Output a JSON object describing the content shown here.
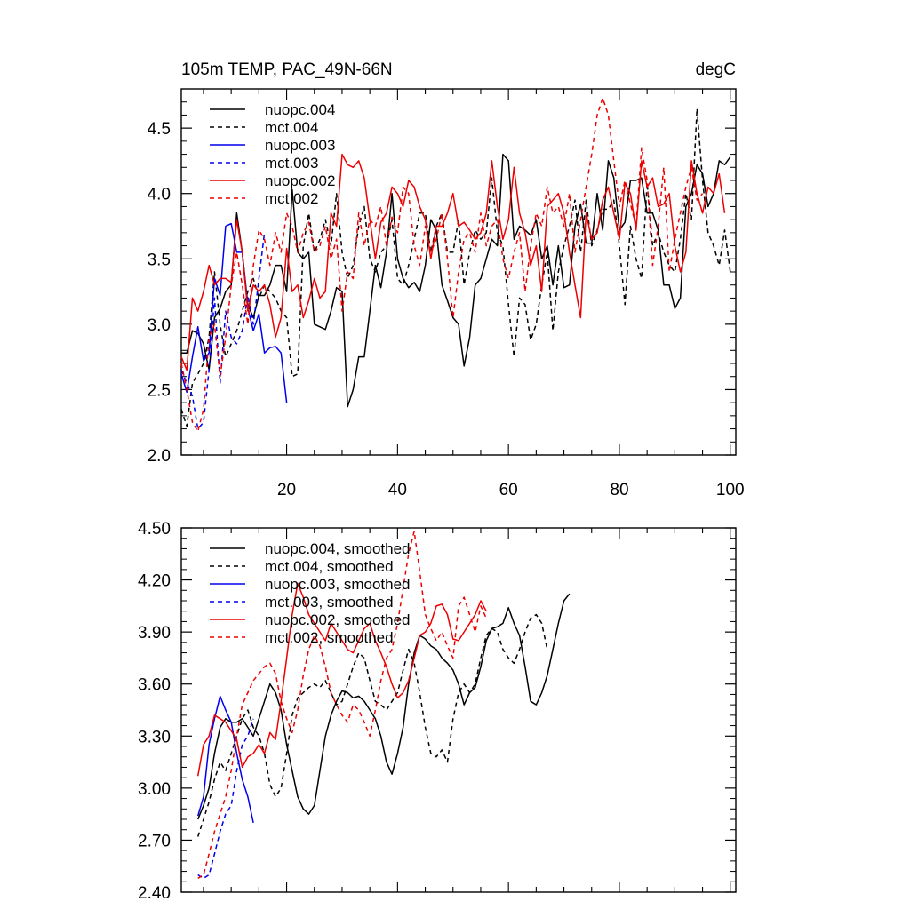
{
  "chart_data": [
    {
      "type": "line",
      "title": "105m TEMP, PAC_49N-66N",
      "units": "degC",
      "xlim": [
        1,
        101
      ],
      "ylim": [
        2.0,
        4.8
      ],
      "yticks": [
        "2.0",
        "2.5",
        "3.0",
        "3.5",
        "4.0",
        "4.5"
      ],
      "xticks": [
        "20",
        "40",
        "60",
        "80",
        "100"
      ],
      "legend_position": "top-left",
      "series": [
        {
          "name": "nuopc.004",
          "color": "#000000",
          "dash": "solid",
          "x_start": 1,
          "values": [
            2.78,
            2.78,
            2.95,
            2.93,
            2.85,
            2.65,
            3.05,
            3.12,
            3.25,
            3.3,
            3.85,
            3.55,
            3.15,
            3.05,
            3.22,
            3.22,
            3.3,
            3.45,
            3.45,
            3.25,
            4.03,
            3.55,
            3.5,
            3.55,
            3.0,
            2.98,
            2.96,
            3.1,
            3.28,
            3.25,
            2.37,
            2.5,
            2.75,
            2.75,
            3.1,
            3.45,
            3.28,
            3.55,
            4.0,
            3.5,
            3.35,
            3.28,
            3.32,
            3.25,
            3.45,
            3.8,
            3.72,
            3.3,
            3.18,
            3.05,
            3.0,
            2.68,
            2.9,
            3.3,
            3.35,
            3.5,
            3.65,
            3.6,
            4.3,
            4.25,
            3.65,
            3.75,
            3.72,
            3.68,
            3.8,
            3.5,
            3.6,
            3.3,
            3.6,
            3.28,
            3.3,
            3.75,
            3.92,
            3.62,
            3.62,
            4.0,
            3.72,
            4.25,
            4.12,
            3.72,
            3.78,
            4.1,
            4.1,
            4.12,
            3.85,
            3.85,
            3.72,
            3.3,
            3.3,
            3.12,
            3.2,
            3.9,
            4.0,
            4.22,
            4.15,
            3.9,
            4.0,
            4.25,
            4.22,
            4.28
          ]
        },
        {
          "name": "mct.004",
          "color": "#000000",
          "dash": "dashed",
          "x_start": 1,
          "values": [
            2.35,
            2.22,
            2.55,
            2.62,
            2.7,
            2.9,
            3.4,
            3.0,
            2.75,
            2.85,
            2.95,
            3.1,
            3.25,
            3.35,
            3.2,
            3.3,
            3.25,
            3.2,
            3.1,
            3.05,
            2.6,
            2.62,
            3.6,
            3.85,
            3.55,
            3.65,
            3.8,
            3.6,
            4.0,
            3.55,
            3.35,
            3.45,
            3.75,
            3.9,
            3.5,
            3.4,
            3.55,
            3.6,
            3.8,
            3.35,
            3.3,
            3.45,
            3.65,
            3.85,
            3.85,
            3.55,
            3.75,
            3.85,
            3.55,
            3.55,
            3.8,
            3.3,
            3.55,
            3.72,
            3.65,
            3.7,
            4.12,
            3.7,
            3.6,
            3.15,
            2.75,
            3.2,
            3.15,
            2.88,
            3.0,
            3.3,
            3.55,
            2.95,
            3.4,
            3.6,
            3.75,
            3.95,
            3.55,
            3.95,
            3.6,
            3.72,
            3.88,
            3.88,
            3.95,
            3.6,
            3.15,
            3.75,
            3.5,
            3.35,
            4.08,
            3.6,
            3.7,
            3.55,
            3.45,
            3.4,
            3.65,
            4.0,
            3.8,
            4.65,
            4.1,
            3.7,
            3.6,
            3.45,
            3.72,
            3.4
          ]
        },
        {
          "name": "nuopc.003",
          "color": "#0000ee",
          "dash": "solid",
          "x_start": 1,
          "values": [
            2.62,
            2.48,
            2.75,
            2.98,
            2.72,
            2.78,
            3.35,
            3.22,
            3.75,
            3.77,
            3.55,
            3.55,
            3.12,
            2.95,
            3.08,
            2.78,
            2.82,
            2.83,
            2.78,
            2.4
          ]
        },
        {
          "name": "mct.003",
          "color": "#0000ee",
          "dash": "dashed",
          "x_start": 1,
          "values": [
            2.65,
            2.55,
            2.45,
            2.2,
            2.25,
            2.65,
            3.2,
            2.55,
            3.1,
            2.9,
            2.85,
            2.95,
            3.22,
            3.0,
            3.35,
            3.7
          ]
        },
        {
          "name": "nuopc.002",
          "color": "#ee0000",
          "dash": "solid",
          "x_start": 1,
          "values": [
            2.75,
            2.65,
            3.2,
            3.1,
            3.25,
            3.45,
            3.3,
            3.35,
            3.35,
            3.32,
            3.8,
            3.55,
            3.1,
            3.3,
            3.25,
            3.3,
            3.15,
            2.9,
            3.05,
            3.58,
            3.25,
            3.3,
            3.05,
            3.18,
            3.35,
            3.2,
            3.25,
            3.85,
            3.75,
            4.3,
            4.22,
            4.2,
            4.25,
            4.12,
            3.8,
            3.5,
            3.78,
            3.85,
            4.05,
            4.0,
            3.9,
            4.1,
            4.05,
            3.9,
            3.8,
            3.5,
            3.75,
            3.75,
            3.85,
            4.0,
            3.75,
            3.78,
            3.72,
            3.65,
            3.7,
            3.85,
            4.25,
            3.9,
            3.65,
            3.8,
            4.2,
            3.85,
            3.7,
            3.45,
            3.6,
            3.25,
            3.9,
            3.95,
            4.0,
            3.85,
            3.55,
            3.3,
            3.05,
            3.85,
            3.65,
            3.7,
            3.95,
            4.05,
            3.85,
            3.65,
            4.08,
            4.0,
            3.72,
            4.25,
            4.05,
            4.12,
            3.9,
            3.92,
            4.0,
            3.6,
            3.4,
            3.55,
            4.25,
            4.0,
            3.85,
            4.05,
            4.0,
            4.15,
            3.85
          ]
        },
        {
          "name": "mct.002",
          "color": "#ee0000",
          "dash": "dashed",
          "x_start": 1,
          "values": [
            2.7,
            2.5,
            2.25,
            2.18,
            2.35,
            2.9,
            3.0,
            2.6,
            2.9,
            3.3,
            3.55,
            3.3,
            3.0,
            3.45,
            3.72,
            3.65,
            3.45,
            3.7,
            3.55,
            3.85,
            3.75,
            3.55,
            3.7,
            3.78,
            3.55,
            3.6,
            3.75,
            3.5,
            3.65,
            3.1,
            3.4,
            3.35,
            3.85,
            3.6,
            3.8,
            3.75,
            3.9,
            3.6,
            3.82,
            3.7,
            4.05,
            4.0,
            3.6,
            3.45,
            3.75,
            3.55,
            3.65,
            3.85,
            3.5,
            3.05,
            3.4,
            3.65,
            3.7,
            3.55,
            3.85,
            3.6,
            3.75,
            3.8,
            3.5,
            3.35,
            3.55,
            3.7,
            3.25,
            3.6,
            3.85,
            3.75,
            4.05,
            3.85,
            3.9,
            3.75,
            4.0,
            3.55,
            3.8,
            4.05,
            4.3,
            4.6,
            4.73,
            4.6,
            4.25,
            3.9,
            4.1,
            3.92,
            3.75,
            4.35,
            4.1,
            3.45,
            3.75,
            4.2,
            3.4,
            3.65,
            3.85,
            4.05,
            4.2,
            3.95,
            4.0
          ]
        }
      ]
    },
    {
      "type": "line",
      "title": "",
      "xlim": [
        1,
        101
      ],
      "ylim": [
        2.4,
        4.5
      ],
      "yticks": [
        "2.40",
        "2.70",
        "3.00",
        "3.30",
        "3.60",
        "3.90",
        "4.20",
        "4.50"
      ],
      "legend_position": "top-left",
      "series": [
        {
          "name": "nuopc.004, smoothed",
          "color": "#000000",
          "dash": "solid",
          "x_start": 4,
          "values": [
            2.82,
            2.9,
            3.0,
            3.2,
            3.35,
            3.4,
            3.38,
            3.38,
            3.4,
            3.35,
            3.3,
            3.4,
            3.5,
            3.6,
            3.55,
            3.45,
            3.25,
            3.1,
            2.95,
            2.88,
            2.85,
            2.9,
            3.1,
            3.3,
            3.42,
            3.5,
            3.56,
            3.55,
            3.52,
            3.53,
            3.5,
            3.45,
            3.4,
            3.3,
            3.15,
            3.08,
            3.2,
            3.35,
            3.6,
            3.78,
            3.88,
            3.86,
            3.82,
            3.8,
            3.75,
            3.72,
            3.68,
            3.6,
            3.48,
            3.55,
            3.58,
            3.7,
            3.85,
            3.92,
            3.93,
            3.95,
            4.04,
            3.95,
            3.88,
            3.7,
            3.5,
            3.48,
            3.55,
            3.65,
            3.8,
            3.95,
            4.08,
            4.12
          ]
        },
        {
          "name": "mct.004, smoothed",
          "color": "#000000",
          "dash": "dashed",
          "x_start": 4,
          "values": [
            2.72,
            2.82,
            2.92,
            3.05,
            3.15,
            3.1,
            3.2,
            3.3,
            3.4,
            3.45,
            3.35,
            3.3,
            3.2,
            3.02,
            2.95,
            3.0,
            3.2,
            3.42,
            3.52,
            3.55,
            3.58,
            3.6,
            3.58,
            3.62,
            3.55,
            3.48,
            3.5,
            3.6,
            3.7,
            3.78,
            3.75,
            3.62,
            3.5,
            3.48,
            3.45,
            3.5,
            3.55,
            3.68,
            3.8,
            3.72,
            3.55,
            3.35,
            3.2,
            3.18,
            3.22,
            3.15,
            3.4,
            3.55,
            3.6,
            3.55,
            3.6,
            3.75,
            3.88,
            3.92,
            3.9,
            3.8,
            3.75,
            3.72,
            3.8,
            3.9,
            3.98,
            4.0,
            3.95,
            3.8
          ]
        },
        {
          "name": "nuopc.003, smoothed",
          "color": "#0000ee",
          "dash": "solid",
          "x_start": 4,
          "values": [
            2.84,
            2.95,
            3.25,
            3.4,
            3.53,
            3.45,
            3.38,
            3.2,
            3.05,
            2.95,
            2.8
          ]
        },
        {
          "name": "mct.003, smoothed",
          "color": "#0000ee",
          "dash": "dashed",
          "x_start": 4,
          "values": [
            2.5,
            2.48,
            2.5,
            2.62,
            2.75,
            2.85,
            2.9,
            3.1,
            3.25,
            3.3,
            3.4
          ]
        },
        {
          "name": "nuopc.002, smoothed",
          "color": "#ee0000",
          "dash": "solid",
          "x_start": 4,
          "values": [
            3.07,
            3.25,
            3.3,
            3.42,
            3.4,
            3.38,
            3.33,
            3.28,
            3.12,
            3.18,
            3.2,
            3.25,
            3.2,
            3.32,
            3.28,
            3.5,
            3.75,
            4.0,
            4.18,
            4.1,
            4.0,
            3.95,
            3.9,
            3.85,
            3.95,
            3.9,
            3.85,
            3.8,
            3.78,
            3.85,
            3.92,
            3.95,
            3.85,
            3.78,
            3.7,
            3.6,
            3.52,
            3.55,
            3.62,
            3.75,
            3.88,
            3.9,
            3.95,
            4.05,
            4.06,
            4.0,
            3.86,
            3.85,
            3.9,
            3.95,
            4.0,
            4.08,
            4.02
          ]
        },
        {
          "name": "mct.002, smoothed",
          "color": "#ee0000",
          "dash": "dashed",
          "x_start": 4,
          "values": [
            2.48,
            2.5,
            2.62,
            2.75,
            2.85,
            2.95,
            3.1,
            3.3,
            3.48,
            3.55,
            3.62,
            3.66,
            3.7,
            3.72,
            3.66,
            3.5,
            3.4,
            3.32,
            3.45,
            3.65,
            3.8,
            3.88,
            3.82,
            3.7,
            3.55,
            3.48,
            3.42,
            3.38,
            3.48,
            3.45,
            3.38,
            3.3,
            3.45,
            3.62,
            3.75,
            3.8,
            3.95,
            4.15,
            4.35,
            4.48,
            4.25,
            4.0,
            3.92,
            3.85,
            3.9,
            3.82,
            3.75,
            4.05,
            4.1,
            4.0,
            3.9,
            4.05,
            3.98
          ]
        }
      ]
    }
  ]
}
